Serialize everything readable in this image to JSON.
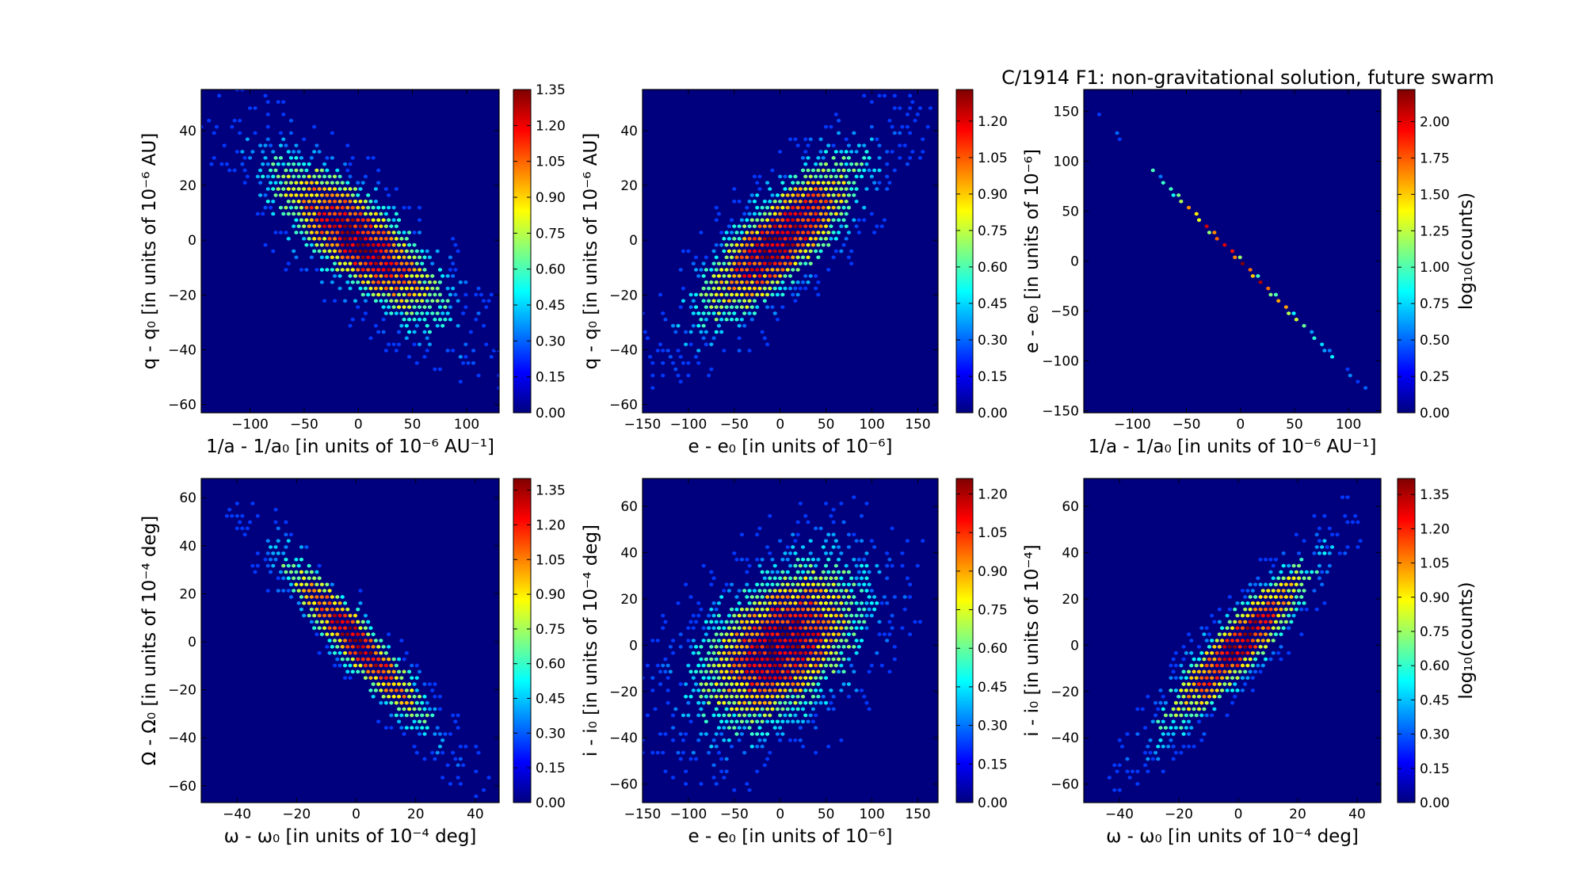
{
  "figure": {
    "title": "C/1914 F1:  non-gravitational solution, future swarm",
    "colormap": [
      "#00007f",
      "#0000ff",
      "#0080ff",
      "#00ffff",
      "#80ff80",
      "#ffff00",
      "#ff8000",
      "#ff0000",
      "#7f0000"
    ],
    "background_color": "#00007f"
  },
  "chart_data": [
    {
      "type": "heatmap",
      "subtype": "hexbin",
      "xlabel": "1/a - 1/a₀ [in units of 10⁻⁶ AU⁻¹]",
      "ylabel": "q - q₀ [in units of 10⁻⁶ AU]",
      "xlim": [
        -145,
        130
      ],
      "ylim": [
        -63,
        55
      ],
      "xticks": [
        "−100",
        "−50",
        "0",
        "50",
        "100"
      ],
      "xtick_values": [
        -100,
        -50,
        0,
        50,
        100
      ],
      "yticks": [
        "−60",
        "−40",
        "−20",
        "0",
        "20",
        "40"
      ],
      "ytick_values": [
        -60,
        -40,
        -20,
        0,
        20,
        40
      ],
      "distribution": {
        "mean_x": 0,
        "mean_y": 0,
        "std_x": 45,
        "std_y": 17,
        "correlation": -0.78
      },
      "colorbar": {
        "label": "",
        "range": [
          0,
          1.35
        ],
        "ticks": [
          "0.00",
          "0.15",
          "0.30",
          "0.45",
          "0.60",
          "0.75",
          "0.90",
          "1.05",
          "1.20",
          "1.35"
        ]
      }
    },
    {
      "type": "heatmap",
      "subtype": "hexbin",
      "xlabel": "e - e₀ [in units of 10⁻⁶]",
      "ylabel": "q - q₀ [in units of 10⁻⁶ AU]",
      "xlim": [
        -150,
        172
      ],
      "ylim": [
        -63,
        55
      ],
      "xticks": [
        "−150",
        "−100",
        "−50",
        "0",
        "50",
        "100",
        "150"
      ],
      "xtick_values": [
        -150,
        -100,
        -50,
        0,
        50,
        100,
        150
      ],
      "yticks": [
        "−60",
        "−40",
        "−20",
        "0",
        "20",
        "40"
      ],
      "ytick_values": [
        -60,
        -40,
        -20,
        0,
        20,
        40
      ],
      "distribution": {
        "mean_x": 0,
        "mean_y": 0,
        "std_x": 50,
        "std_y": 17,
        "correlation": 0.78
      },
      "colorbar": {
        "label": "",
        "range": [
          0,
          1.33
        ],
        "ticks": [
          "0.00",
          "0.15",
          "0.30",
          "0.45",
          "0.60",
          "0.75",
          "0.90",
          "1.05",
          "1.20"
        ]
      }
    },
    {
      "type": "heatmap",
      "subtype": "hexbin",
      "xlabel": "1/a - 1/a₀ [in units of 10⁻⁶ AU⁻¹]",
      "ylabel": "e - e₀ [in units of 10⁻⁶]",
      "xlim": [
        -145,
        130
      ],
      "ylim": [
        -152,
        172
      ],
      "xticks": [
        "−100",
        "−50",
        "0",
        "50",
        "100"
      ],
      "xtick_values": [
        -100,
        -50,
        0,
        50,
        100
      ],
      "yticks": [
        "−150",
        "−100",
        "−50",
        "0",
        "50",
        "100",
        "150"
      ],
      "ytick_values": [
        -150,
        -100,
        -50,
        0,
        50,
        100,
        150
      ],
      "distribution": {
        "mean_x": 0,
        "mean_y": 0,
        "std_x": 45,
        "std_y": 50,
        "correlation": -0.999
      },
      "colorbar": {
        "label": "log₁₀(counts)",
        "range": [
          0,
          2.22
        ],
        "ticks": [
          "0.00",
          "0.25",
          "0.50",
          "0.75",
          "1.00",
          "1.25",
          "1.50",
          "1.75",
          "2.00"
        ]
      }
    },
    {
      "type": "heatmap",
      "subtype": "hexbin",
      "xlabel": "ω - ω₀ [in units of 10⁻⁴ deg]",
      "ylabel": "Ω - Ω₀ [in units of 10⁻⁴ deg]",
      "xlim": [
        -52,
        48
      ],
      "ylim": [
        -67,
        68
      ],
      "xticks": [
        "−40",
        "−20",
        "0",
        "20",
        "40"
      ],
      "xtick_values": [
        -40,
        -20,
        0,
        20,
        40
      ],
      "yticks": [
        "−60",
        "−40",
        "−20",
        "0",
        "20",
        "40",
        "60"
      ],
      "ytick_values": [
        -60,
        -40,
        -20,
        0,
        20,
        40,
        60
      ],
      "distribution": {
        "mean_x": 0,
        "mean_y": 0,
        "std_x": 14,
        "std_y": 20,
        "correlation": -0.93
      },
      "colorbar": {
        "label": "",
        "range": [
          0,
          1.4
        ],
        "ticks": [
          "0.00",
          "0.15",
          "0.30",
          "0.45",
          "0.60",
          "0.75",
          "0.90",
          "1.05",
          "1.20",
          "1.35"
        ]
      }
    },
    {
      "type": "heatmap",
      "subtype": "hexbin",
      "xlabel": "e - e₀ [in units of 10⁻⁶]",
      "ylabel": "i - i₀ [in units of 10⁻⁴ deg]",
      "xlim": [
        -150,
        172
      ],
      "ylim": [
        -68,
        72
      ],
      "xticks": [
        "−150",
        "−100",
        "−50",
        "0",
        "50",
        "100",
        "150"
      ],
      "xtick_values": [
        -150,
        -100,
        -50,
        0,
        50,
        100,
        150
      ],
      "yticks": [
        "−60",
        "−40",
        "−20",
        "0",
        "20",
        "40",
        "60"
      ],
      "ytick_values": [
        -60,
        -40,
        -20,
        0,
        20,
        40,
        60
      ],
      "distribution": {
        "mean_x": 0,
        "mean_y": 0,
        "std_x": 50,
        "std_y": 20,
        "correlation": 0.45
      },
      "colorbar": {
        "label": "",
        "range": [
          0,
          1.26
        ],
        "ticks": [
          "0.00",
          "0.15",
          "0.30",
          "0.45",
          "0.60",
          "0.75",
          "0.90",
          "1.05",
          "1.20"
        ]
      }
    },
    {
      "type": "heatmap",
      "subtype": "hexbin",
      "xlabel": "ω - ω₀ [in units of 10⁻⁴ deg]",
      "ylabel": "i - i₀ [in units of 10⁻⁴]",
      "xlim": [
        -52,
        48
      ],
      "ylim": [
        -68,
        72
      ],
      "xticks": [
        "−40",
        "−20",
        "0",
        "20",
        "40"
      ],
      "xtick_values": [
        -40,
        -20,
        0,
        20,
        40
      ],
      "yticks": [
        "−60",
        "−40",
        "−20",
        "0",
        "20",
        "40",
        "60"
      ],
      "ytick_values": [
        -60,
        -40,
        -20,
        0,
        20,
        40,
        60
      ],
      "distribution": {
        "mean_x": 0,
        "mean_y": 0,
        "std_x": 14,
        "std_y": 20,
        "correlation": 0.9
      },
      "colorbar": {
        "label": "log₁₀(counts)",
        "range": [
          0,
          1.42
        ],
        "ticks": [
          "0.00",
          "0.15",
          "0.30",
          "0.45",
          "0.60",
          "0.75",
          "0.90",
          "1.05",
          "1.20",
          "1.35"
        ]
      }
    }
  ]
}
